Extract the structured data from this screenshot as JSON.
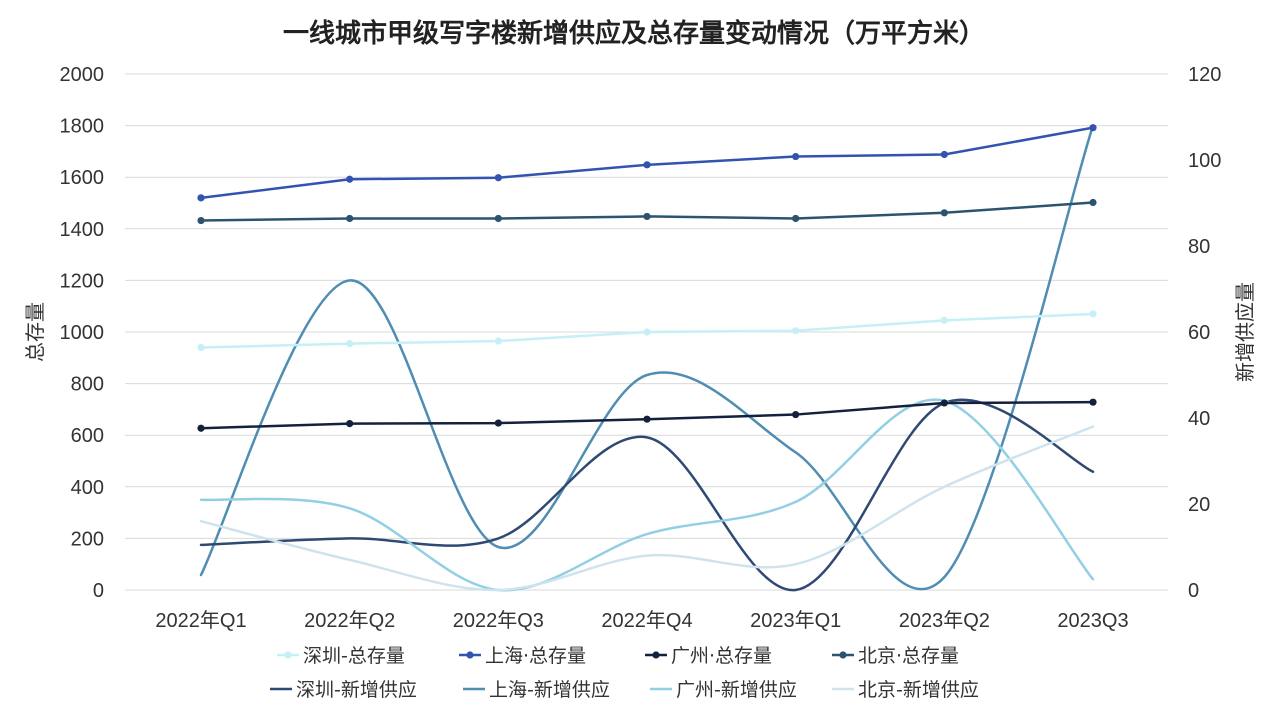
{
  "chart_data": {
    "type": "line",
    "title": "一线城市甲级写字楼新增供应及总存量变动情况（万平方米）",
    "ylabel_left": "总存量",
    "ylabel_right": "新增供应量",
    "ylim_left": [
      0,
      2000
    ],
    "yticks_left": [
      0,
      200,
      400,
      600,
      800,
      1000,
      1200,
      1400,
      1600,
      1800,
      2000
    ],
    "ylim_right": [
      0,
      120
    ],
    "yticks_right": [
      0,
      20,
      40,
      60,
      80,
      100,
      120
    ],
    "grid": true,
    "legend_position": "bottom",
    "categories": [
      "2022年Q1",
      "2022年Q2",
      "2022年Q3",
      "2022年Q4",
      "2023年Q1",
      "2023年Q2",
      "2023Q3"
    ],
    "series": [
      {
        "name": "深圳-总存量",
        "axis": "left",
        "smooth": false,
        "marker": true,
        "color": "#c6eff8",
        "values": [
          940,
          955,
          965,
          1000,
          1005,
          1045,
          1070
        ]
      },
      {
        "name": "上海·总存量",
        "axis": "left",
        "smooth": false,
        "marker": true,
        "color": "#3353b0",
        "values": [
          1520,
          1592,
          1598,
          1648,
          1680,
          1688,
          1792
        ]
      },
      {
        "name": "广州·总存量",
        "axis": "left",
        "smooth": false,
        "marker": true,
        "color": "#14213d",
        "values": [
          627,
          645,
          647,
          662,
          680,
          725,
          728
        ]
      },
      {
        "name": "北京·总存量",
        "axis": "left",
        "smooth": false,
        "marker": true,
        "color": "#2c5470",
        "values": [
          1432,
          1440,
          1440,
          1448,
          1440,
          1462,
          1502
        ]
      },
      {
        "name": "深圳-新增供应",
        "axis": "right",
        "smooth": true,
        "marker": false,
        "color": "#2f4a72",
        "values": [
          10.5,
          12,
          12,
          35.5,
          0,
          43.5,
          27.5
        ]
      },
      {
        "name": "上海-新增供应",
        "axis": "right",
        "smooth": true,
        "marker": false,
        "color": "#4f8db3",
        "values": [
          3.5,
          72,
          10,
          50,
          32,
          3,
          108
        ]
      },
      {
        "name": "广州-新增供应",
        "axis": "right",
        "smooth": true,
        "marker": false,
        "color": "#93cfe4",
        "values": [
          21,
          19,
          0,
          13,
          20.5,
          44,
          2.5
        ]
      },
      {
        "name": "北京-新增供应",
        "axis": "right",
        "smooth": true,
        "marker": false,
        "color": "#cfe3ee",
        "values": [
          16,
          7,
          0,
          8,
          6,
          24,
          38
        ]
      }
    ]
  }
}
